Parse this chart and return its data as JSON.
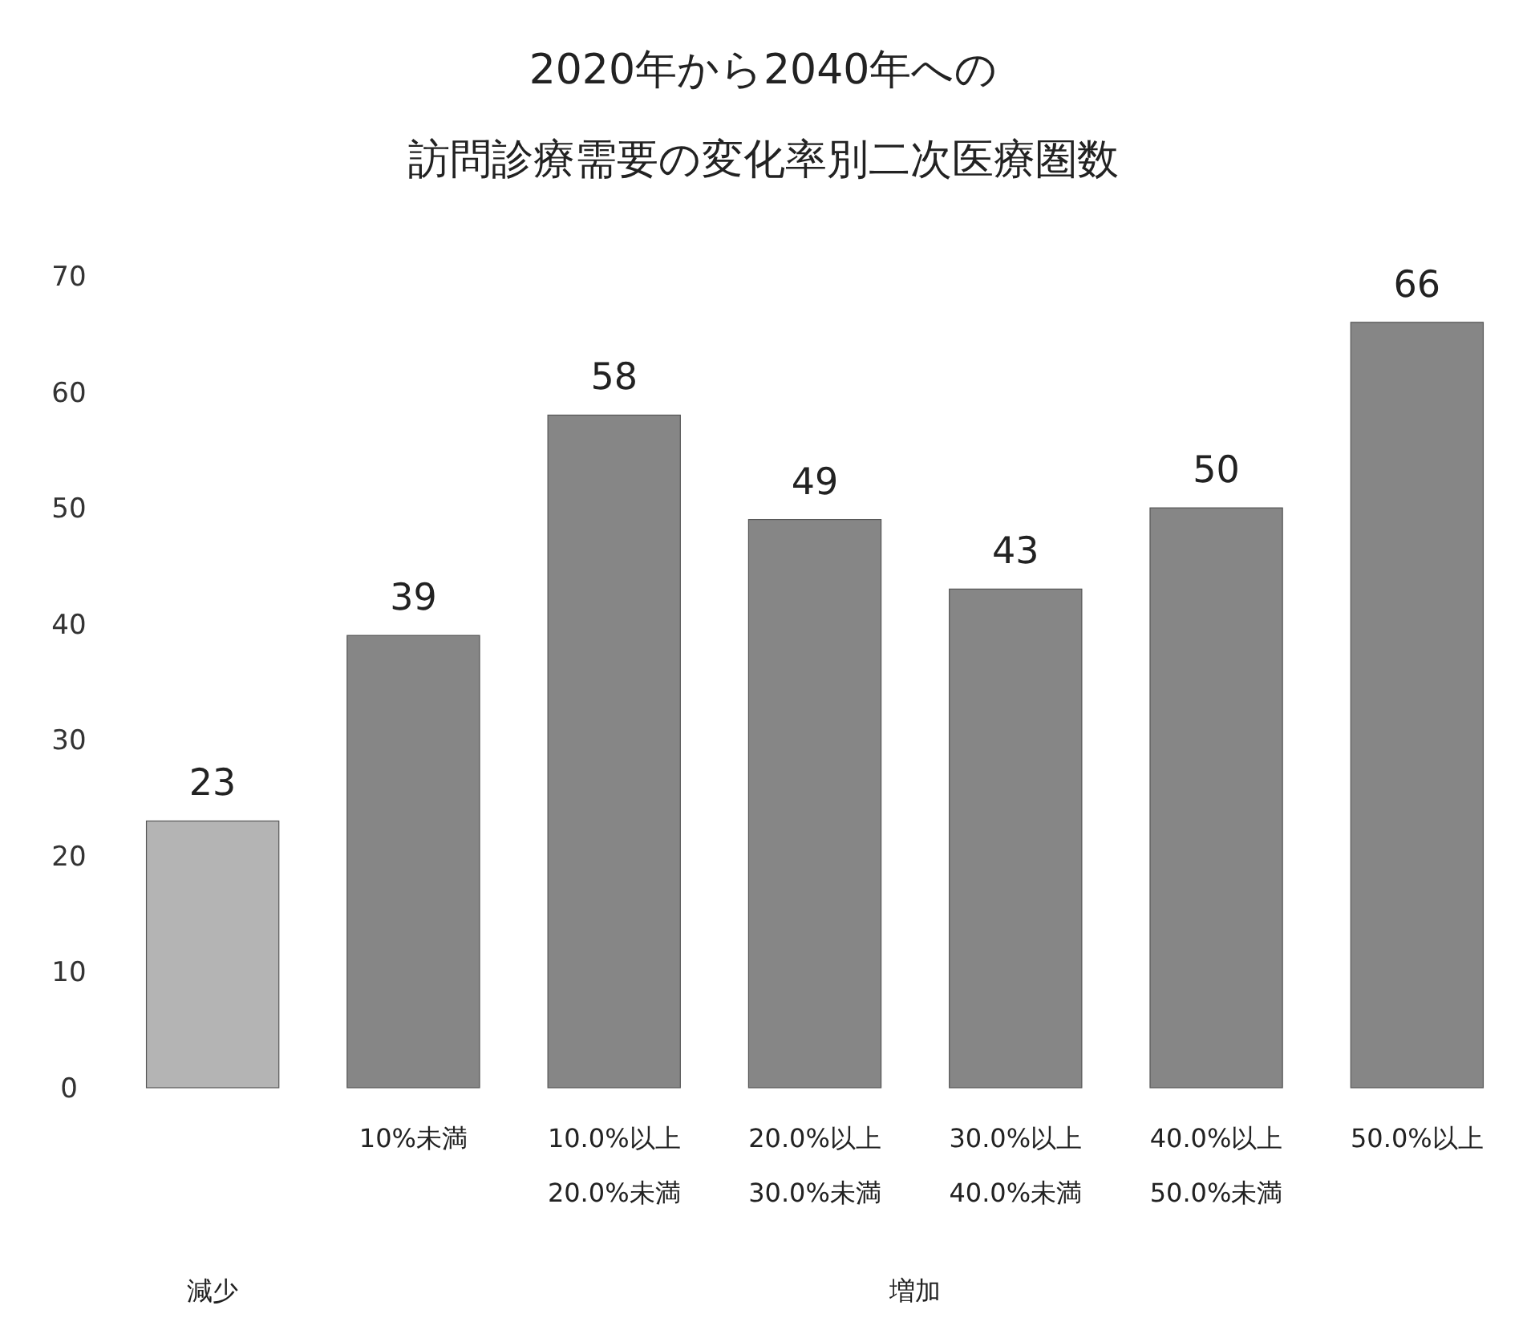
{
  "chart_data": {
    "type": "bar",
    "title": "2020年から2040年への",
    "subtitle": "訪問診療需要の変化率別二次医療圏数",
    "categories": [
      null,
      "10%未満",
      "10.0%以上\n20.0%未満",
      "20.0%以上\n30.0%未満",
      "30.0%以上\n40.0%未満",
      "40.0%以上\n50.0%未満",
      "50.0%以上"
    ],
    "values": [
      23,
      39,
      58,
      49,
      43,
      50,
      66
    ],
    "colors": [
      "#b4b4b4",
      "#868686",
      "#868686",
      "#868686",
      "#868686",
      "#868686",
      "#868686"
    ],
    "ylim": [
      0,
      70
    ],
    "yticks": [
      0,
      10,
      20,
      30,
      40,
      50,
      60,
      70
    ],
    "data_labels": true,
    "grid": false,
    "annotations": [
      "減少",
      "増加"
    ]
  }
}
